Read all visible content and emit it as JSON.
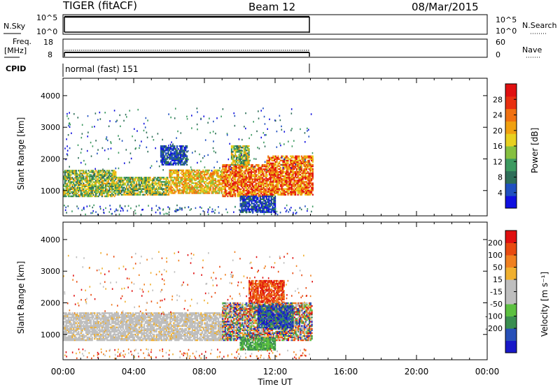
{
  "header": {
    "title": "TIGER (fitACF)",
    "beam": "Beam 12",
    "date": "08/Mar/2015"
  },
  "params": {
    "nsky_label": "N.Sky",
    "nsky_ticks": [
      "10^5",
      "10^0"
    ],
    "nsearch_label": "N.Search",
    "nsearch_ticks": [
      "10^5",
      "10^0"
    ],
    "freq_label_1": "Freq.",
    "freq_label_2": "[MHz]",
    "freq_ticks": [
      "18",
      "8"
    ],
    "nave_label": "Nave",
    "nave_ticks": [
      "60",
      "0"
    ],
    "cpid_label": "CPID",
    "cpid_value": "normal (fast) 151"
  },
  "chart_data": [
    {
      "type": "heatmap",
      "name": "power",
      "ylabel": "Slant Range [km]",
      "ylim": [
        200,
        4550
      ],
      "yticks": [
        "1000",
        "2000",
        "3000",
        "4000"
      ],
      "xlim_hours": [
        0,
        24
      ],
      "data_extent_hours": [
        0,
        14.1
      ],
      "colorbar": {
        "label": "Power [dB]",
        "ticks": [
          "4",
          "8",
          "12",
          "16",
          "20",
          "24",
          "28"
        ],
        "range": [
          0,
          32
        ],
        "colors": [
          "#1010e0",
          "#2050c0",
          "#2e6e58",
          "#3c9a60",
          "#86c040",
          "#e8d020",
          "#f0a010",
          "#f07010",
          "#e83010",
          "#e01010"
        ]
      },
      "bands": [
        {
          "t": [
            0.0,
            3.0
          ],
          "range_km": [
            800,
            1650
          ],
          "level": "mid"
        },
        {
          "t": [
            3.0,
            6.0
          ],
          "range_km": [
            850,
            1400
          ],
          "level": "mid"
        },
        {
          "t": [
            6.0,
            9.0
          ],
          "range_km": [
            900,
            1650
          ],
          "level": "mid-high"
        },
        {
          "t": [
            9.0,
            11.5
          ],
          "range_km": [
            800,
            1800
          ],
          "level": "high"
        },
        {
          "t": [
            11.5,
            14.1
          ],
          "range_km": [
            850,
            2100
          ],
          "level": "high"
        },
        {
          "t": [
            5.5,
            7.0
          ],
          "range_km": [
            1800,
            2400
          ],
          "level": "low"
        },
        {
          "t": [
            9.5,
            10.5
          ],
          "range_km": [
            1800,
            2400
          ],
          "level": "mid"
        },
        {
          "t": [
            10.0,
            12.0
          ],
          "range_km": [
            300,
            800
          ],
          "level": "low"
        }
      ]
    },
    {
      "type": "heatmap",
      "name": "velocity",
      "ylabel": "Slant Range [km]",
      "ylim": [
        200,
        4550
      ],
      "yticks": [
        "1000",
        "2000",
        "3000",
        "4000"
      ],
      "xlim_hours": [
        0,
        24
      ],
      "data_extent_hours": [
        0,
        14.1
      ],
      "xlabel": "Time UT",
      "xticks": [
        "00:00",
        "04:00",
        "08:00",
        "12:00",
        "16:00",
        "20:00",
        "00:00"
      ],
      "colorbar": {
        "label": "Velocity [m s⁻¹]",
        "ticks": [
          "200",
          "100",
          "50",
          "15",
          "-15",
          "-50",
          "-100",
          "-200"
        ],
        "colors": [
          "#1818c8",
          "#2850b8",
          "#3a8e50",
          "#5cc040",
          "#bebebe",
          "#bebebe",
          "#f0b030",
          "#f08020",
          "#e84a10",
          "#e01010"
        ]
      },
      "bands": [
        {
          "t": [
            0.0,
            9.0
          ],
          "range_km": [
            800,
            1700
          ],
          "velocity": "ground (~0)"
        },
        {
          "t": [
            9.0,
            14.1
          ],
          "range_km": [
            800,
            2000
          ],
          "velocity": "mixed"
        },
        {
          "t": [
            10.5,
            12.5
          ],
          "range_km": [
            2000,
            2700
          ],
          "velocity": "negative"
        },
        {
          "t": [
            11.0,
            13.0
          ],
          "range_km": [
            1200,
            1900
          ],
          "velocity": "positive"
        },
        {
          "t": [
            10.0,
            12.0
          ],
          "range_km": [
            500,
            900
          ],
          "velocity": "50-100"
        }
      ]
    }
  ]
}
